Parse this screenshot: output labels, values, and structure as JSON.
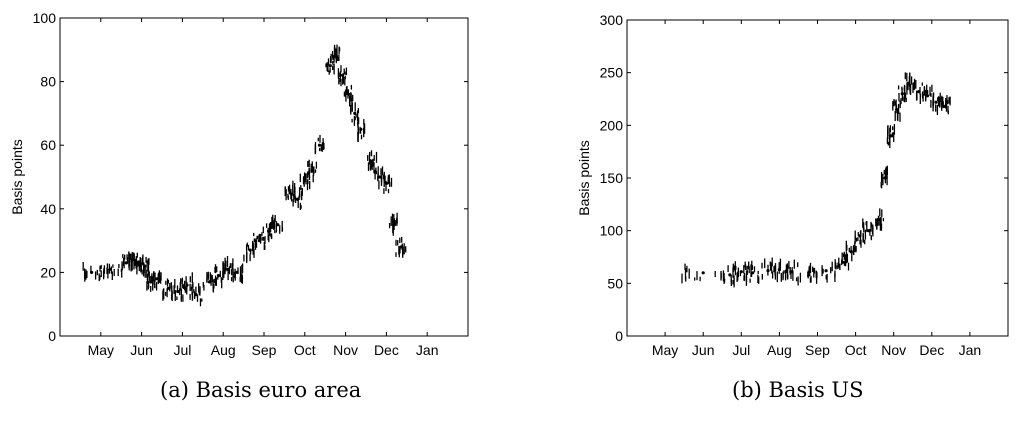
{
  "chart_data": [
    {
      "type": "scatter",
      "caption": "(a) Basis euro area",
      "title": "",
      "xlabel": "",
      "ylabel": "Basis points",
      "ylim": [
        0,
        100
      ],
      "yticks": [
        0,
        20,
        40,
        60,
        80,
        100
      ],
      "xticks": [
        "May",
        "Jun",
        "Jul",
        "Aug",
        "Sep",
        "Oct",
        "Nov",
        "Dec",
        "Jan"
      ],
      "grid": false,
      "series": [
        {
          "points": [
            [
              "May",
              20
            ],
            [
              "May",
              21
            ],
            [
              "Jun",
              23
            ],
            [
              "Jun",
              24
            ],
            [
              "Jun",
              23
            ],
            [
              "Jun",
              22
            ],
            [
              "Jun",
              17
            ],
            [
              "Jun",
              18
            ],
            [
              "Jul",
              15
            ],
            [
              "Jul",
              14
            ],
            [
              "Jul",
              16
            ],
            [
              "Jul",
              13
            ],
            [
              "Aug",
              17
            ],
            [
              "Aug",
              19
            ],
            [
              "Aug",
              21
            ],
            [
              "Aug",
              20
            ],
            [
              "Sep",
              27
            ],
            [
              "Sep",
              30
            ],
            [
              "Sep",
              33
            ],
            [
              "Sep",
              35
            ],
            [
              "Oct",
              45
            ],
            [
              "Oct",
              43
            ],
            [
              "Oct",
              49
            ],
            [
              "Oct",
              52
            ],
            [
              "Oct",
              60
            ],
            [
              "Nov",
              85
            ],
            [
              "Nov",
              88
            ],
            [
              "Nov",
              82
            ],
            [
              "Nov",
              76
            ],
            [
              "Nov",
              70
            ],
            [
              "Nov",
              65
            ],
            [
              "Dec",
              55
            ],
            [
              "Dec",
              50
            ],
            [
              "Dec",
              48
            ],
            [
              "Dec",
              35
            ],
            [
              "Dec",
              28
            ]
          ]
        }
      ]
    },
    {
      "type": "scatter",
      "caption": "(b) Basis US",
      "title": "",
      "xlabel": "",
      "ylabel": "Basis points",
      "ylim": [
        0,
        300
      ],
      "yticks": [
        0,
        50,
        100,
        150,
        200,
        250,
        300
      ],
      "xticks": [
        "May",
        "Jun",
        "Jul",
        "Aug",
        "Sep",
        "Oct",
        "Nov",
        "Dec",
        "Jan"
      ],
      "grid": false,
      "series": [
        {
          "points": [
            [
              "Jun",
              60
            ],
            [
              "Jul",
              58
            ],
            [
              "Jul",
              61
            ],
            [
              "Jul",
              60
            ],
            [
              "Aug",
              62
            ],
            [
              "Aug",
              63
            ],
            [
              "Aug",
              61
            ],
            [
              "Sep",
              58
            ],
            [
              "Sep",
              62
            ],
            [
              "Oct",
              70
            ],
            [
              "Oct",
              80
            ],
            [
              "Oct",
              95
            ],
            [
              "Oct",
              100
            ],
            [
              "Nov",
              110
            ],
            [
              "Nov",
              150
            ],
            [
              "Nov",
              190
            ],
            [
              "Nov",
              215
            ],
            [
              "Nov",
              230
            ],
            [
              "Nov",
              240
            ],
            [
              "Dec",
              232
            ],
            [
              "Dec",
              228
            ],
            [
              "Dec",
              222
            ],
            [
              "Dec",
              218
            ]
          ]
        }
      ]
    }
  ]
}
